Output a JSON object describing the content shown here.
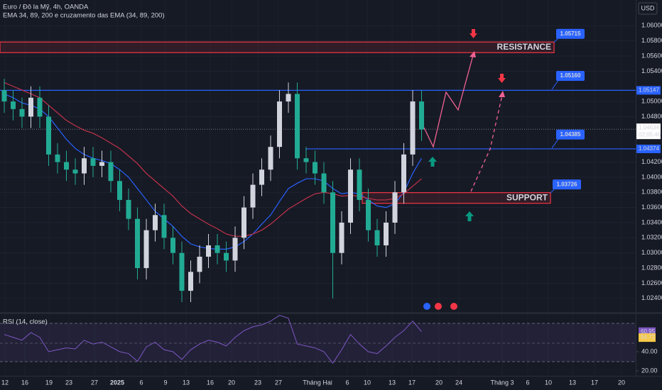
{
  "chart_data": {
    "type": "candlestick",
    "title": "Euro / Đô la Mỹ, 4h, OANDA",
    "indicator_title": "EMA 34, 89, 200 e cruzamento das EMA (34, 89, 200)",
    "currency": "USD",
    "open": [
      1.0515,
      1.05,
      1.049,
      1.048,
      1.0505,
      1.048,
      1.043,
      1.042,
      1.041,
      1.0405,
      1.0425,
      1.0415,
      1.042,
      1.0395,
      1.037,
      1.0345,
      1.028,
      1.033,
      1.035,
      1.032,
      1.03,
      1.025,
      1.0275,
      1.0295,
      1.031,
      1.03,
      1.029,
      1.032,
      1.036,
      1.039,
      1.041,
      1.044,
      1.05,
      1.051,
      1.0425,
      1.042,
      1.0405,
      1.038,
      1.03,
      1.034,
      1.041,
      1.037,
      1.033,
      1.031,
      1.034,
      1.038,
      1.043,
      1.05
    ],
    "high": [
      1.053,
      1.0515,
      1.0505,
      1.052,
      1.052,
      1.0495,
      1.0445,
      1.0435,
      1.0425,
      1.044,
      1.044,
      1.0435,
      1.0435,
      1.041,
      1.0385,
      1.036,
      1.0345,
      1.0365,
      1.0365,
      1.0335,
      1.0315,
      1.029,
      1.031,
      1.0325,
      1.0325,
      1.0315,
      1.0335,
      1.0375,
      1.0405,
      1.0425,
      1.0455,
      1.0515,
      1.0525,
      1.0525,
      1.044,
      1.0435,
      1.042,
      1.0395,
      1.0355,
      1.0425,
      1.0425,
      1.0385,
      1.0345,
      1.0355,
      1.0395,
      1.0445,
      1.0515,
      1.0515
    ],
    "low": [
      1.0485,
      1.0475,
      1.0465,
      1.0465,
      1.0465,
      1.0415,
      1.0405,
      1.0395,
      1.039,
      1.039,
      1.04,
      1.04,
      1.038,
      1.0355,
      1.033,
      1.0265,
      1.0265,
      1.0315,
      1.0305,
      1.0285,
      1.0235,
      1.0235,
      1.026,
      1.028,
      1.0285,
      1.0275,
      1.0275,
      1.0305,
      1.0345,
      1.0375,
      1.0395,
      1.0425,
      1.0485,
      1.041,
      1.0405,
      1.039,
      1.0365,
      1.024,
      1.0285,
      1.0325,
      1.0355,
      1.0315,
      1.0295,
      1.0295,
      1.0325,
      1.0365,
      1.0415,
      1.0448
    ],
    "close": [
      1.05,
      1.049,
      1.048,
      1.0505,
      1.048,
      1.043,
      1.042,
      1.041,
      1.0405,
      1.0425,
      1.0415,
      1.042,
      1.0395,
      1.037,
      1.0345,
      1.028,
      1.033,
      1.035,
      1.032,
      1.03,
      1.025,
      1.0275,
      1.0295,
      1.031,
      1.03,
      1.029,
      1.032,
      1.036,
      1.039,
      1.041,
      1.044,
      1.05,
      1.051,
      1.0425,
      1.042,
      1.0405,
      1.038,
      1.03,
      1.034,
      1.041,
      1.037,
      1.033,
      1.031,
      1.034,
      1.038,
      1.043,
      1.05,
      1.0463
    ],
    "up_color": "#d1d4dc",
    "down_color": "#22ab94",
    "ema_lines": [
      {
        "color": "#2962ff",
        "values": [
          1.051,
          1.0505,
          1.0498,
          1.0495,
          1.049,
          1.048,
          1.0465,
          1.045,
          1.0438,
          1.043,
          1.0425,
          1.0422,
          1.0418,
          1.041,
          1.04,
          1.0385,
          1.037,
          1.0355,
          1.0345,
          1.0335,
          1.0322,
          1.0312,
          1.0308,
          1.0306,
          1.0305,
          1.0305,
          1.0308,
          1.0315,
          1.0325,
          1.0338,
          1.035,
          1.0368,
          1.0385,
          1.0392,
          1.0398,
          1.0398,
          1.0395,
          1.0385,
          1.0378,
          1.038,
          1.0378,
          1.037,
          1.0362,
          1.036,
          1.0365,
          1.038,
          1.0405,
          1.0425
        ]
      },
      {
        "color": "#c2324a",
        "values": [
          1.0525,
          1.052,
          1.0515,
          1.051,
          1.0505,
          1.0495,
          1.0485,
          1.0475,
          1.0468,
          1.0462,
          1.0458,
          1.0452,
          1.0445,
          1.0438,
          1.0428,
          1.0418,
          1.0405,
          1.0395,
          1.0385,
          1.0375,
          1.0362,
          1.0352,
          1.0345,
          1.0338,
          1.0332,
          1.0325,
          1.0322,
          1.0322,
          1.0325,
          1.033,
          1.0338,
          1.0348,
          1.0358,
          1.0365,
          1.0372,
          1.0378,
          1.038,
          1.0378,
          1.0375,
          1.0376,
          1.0375,
          1.0372,
          1.037,
          1.037,
          1.0372,
          1.0378,
          1.0388,
          1.0398
        ]
      }
    ],
    "ylim": [
      1.0222,
      1.0634
    ],
    "yticks": [
      {
        "value": 1.06,
        "label": "1.06000"
      },
      {
        "value": 1.058,
        "label": "1.05800"
      },
      {
        "value": 1.056,
        "label": "1.05600"
      },
      {
        "value": 1.054,
        "label": "1.05400"
      },
      {
        "value": 1.05,
        "label": "1.05000"
      },
      {
        "value": 1.048,
        "label": "1.04800"
      },
      {
        "value": 1.042,
        "label": "1.04200"
      },
      {
        "value": 1.04,
        "label": "1.04000"
      },
      {
        "value": 1.038,
        "label": "1.03800"
      },
      {
        "value": 1.036,
        "label": "1.03600"
      },
      {
        "value": 1.034,
        "label": "1.03400"
      },
      {
        "value": 1.032,
        "label": "1.03200"
      },
      {
        "value": 1.03,
        "label": "1.03000"
      },
      {
        "value": 1.028,
        "label": "1.02800"
      },
      {
        "value": 1.026,
        "label": "1.02600"
      },
      {
        "value": 1.024,
        "label": "1.02400"
      }
    ],
    "x_labels": [
      "12",
      "16",
      "19",
      "23",
      "27",
      "2025",
      "6",
      "9",
      "13",
      "16",
      "20",
      "23",
      "27",
      "Tháng Hai",
      "6",
      "10",
      "13",
      "17",
      "20",
      "24",
      "Tháng 3",
      "6",
      "10",
      "13",
      "17",
      "20"
    ],
    "zones": [
      {
        "text": "RESISTANCE",
        "value": 1.05715,
        "color": "#f23645"
      },
      {
        "text": "SUPPORT",
        "value": 1.03726,
        "color": "#f23645"
      }
    ],
    "callouts": [
      {
        "value": 1.0516,
        "label": "1.05160"
      },
      {
        "value": 1.04385
      }
    ],
    "horizontal_lines": [
      {
        "value": 1.05147,
        "color": "#2962ff"
      },
      {
        "value": 1.04374,
        "color": "#2962ff"
      }
    ],
    "last_price": 1.04634,
    "countdown": "02:05:46",
    "rsi": {
      "title": "RSI (14, close)",
      "color": "#7e57c2",
      "values": [
        58,
        55,
        52,
        60,
        55,
        40,
        42,
        44,
        43,
        52,
        48,
        50,
        45,
        40,
        38,
        30,
        45,
        50,
        42,
        40,
        32,
        42,
        48,
        52,
        50,
        46,
        55,
        62,
        66,
        68,
        72,
        78,
        75,
        48,
        46,
        44,
        40,
        28,
        42,
        58,
        48,
        40,
        38,
        46,
        55,
        62,
        72,
        61
      ],
      "ylim": [
        14.8,
        80
      ],
      "yticks": [
        {
          "value": 40,
          "label": "40.00"
        },
        {
          "value": 20,
          "label": "20.00"
        }
      ],
      "last": 60.95,
      "ma": 54.72
    }
  }
}
